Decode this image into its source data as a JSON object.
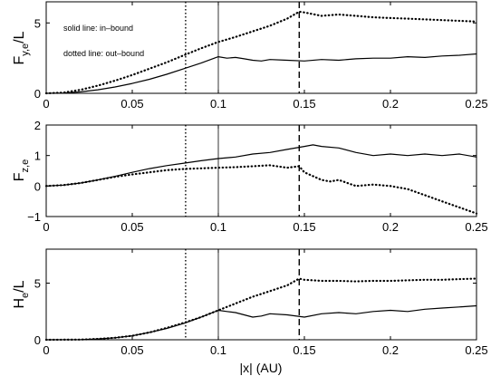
{
  "chart_data": [
    {
      "type": "line",
      "ylabel_main": "F",
      "ylabel_sub": "y,e",
      "ylabel_tail": "/L",
      "xlim": [
        0,
        0.25
      ],
      "ylim": [
        0,
        6.5
      ],
      "xticks": [
        0,
        0.05,
        0.1,
        0.15,
        0.2,
        0.25
      ],
      "xtick_labels": [
        "0",
        "0.05",
        "0.1",
        "0.15",
        "0.2",
        "0.25"
      ],
      "yticks": [
        0,
        5
      ],
      "ytick_labels": [
        "0",
        "5"
      ],
      "vlines": [
        {
          "x": 0.081,
          "style": "dotted"
        },
        {
          "x": 0.1,
          "style": "solid"
        },
        {
          "x": 0.147,
          "style": "dashed"
        }
      ],
      "annotations": [
        "solid line: in–bound",
        "dotted line: out–bound"
      ],
      "series": [
        {
          "style": "solid",
          "x": [
            0,
            0.01,
            0.02,
            0.03,
            0.04,
            0.05,
            0.06,
            0.07,
            0.08,
            0.09,
            0.1,
            0.105,
            0.11,
            0.115,
            0.12,
            0.125,
            0.13,
            0.14,
            0.15,
            0.16,
            0.17,
            0.18,
            0.19,
            0.2,
            0.21,
            0.22,
            0.23,
            0.24,
            0.25
          ],
          "y": [
            0,
            0.02,
            0.1,
            0.25,
            0.45,
            0.7,
            1.0,
            1.35,
            1.75,
            2.15,
            2.6,
            2.5,
            2.55,
            2.45,
            2.35,
            2.3,
            2.4,
            2.35,
            2.3,
            2.4,
            2.35,
            2.45,
            2.5,
            2.5,
            2.6,
            2.55,
            2.65,
            2.7,
            2.8
          ]
        },
        {
          "style": "dotted",
          "x": [
            0,
            0.01,
            0.02,
            0.03,
            0.04,
            0.05,
            0.06,
            0.07,
            0.08,
            0.09,
            0.1,
            0.11,
            0.12,
            0.13,
            0.14,
            0.147,
            0.15,
            0.16,
            0.17,
            0.18,
            0.19,
            0.2,
            0.21,
            0.22,
            0.23,
            0.24,
            0.25
          ],
          "y": [
            0,
            0.05,
            0.25,
            0.55,
            0.9,
            1.3,
            1.75,
            2.2,
            2.7,
            3.2,
            3.65,
            4.0,
            4.4,
            4.8,
            5.3,
            5.8,
            5.75,
            5.5,
            5.6,
            5.5,
            5.4,
            5.35,
            5.3,
            5.25,
            5.2,
            5.15,
            5.1
          ]
        }
      ]
    },
    {
      "type": "line",
      "ylabel_main": "F",
      "ylabel_sub": "z,e",
      "ylabel_tail": "",
      "xlim": [
        0,
        0.25
      ],
      "ylim": [
        -1,
        2
      ],
      "xticks": [
        0,
        0.05,
        0.1,
        0.15,
        0.2,
        0.25
      ],
      "xtick_labels": [
        "0",
        "0.05",
        "0.1",
        "0.15",
        "0.2",
        "0.25"
      ],
      "yticks": [
        -1,
        0,
        1,
        2
      ],
      "ytick_labels": [
        "−1",
        "0",
        "1",
        "2"
      ],
      "vlines": [
        {
          "x": 0.081,
          "style": "dotted"
        },
        {
          "x": 0.1,
          "style": "solid"
        },
        {
          "x": 0.147,
          "style": "dashed"
        }
      ],
      "annotations": [],
      "series": [
        {
          "style": "solid",
          "x": [
            0,
            0.01,
            0.02,
            0.03,
            0.04,
            0.05,
            0.06,
            0.07,
            0.08,
            0.09,
            0.1,
            0.11,
            0.12,
            0.13,
            0.14,
            0.15,
            0.155,
            0.16,
            0.17,
            0.18,
            0.19,
            0.2,
            0.21,
            0.22,
            0.23,
            0.24,
            0.25
          ],
          "y": [
            0,
            0.03,
            0.1,
            0.2,
            0.32,
            0.45,
            0.57,
            0.67,
            0.75,
            0.83,
            0.9,
            0.95,
            1.05,
            1.1,
            1.2,
            1.3,
            1.35,
            1.3,
            1.25,
            1.1,
            1.0,
            1.05,
            1.0,
            1.05,
            1.0,
            1.05,
            0.95
          ]
        },
        {
          "style": "dotted",
          "x": [
            0,
            0.01,
            0.02,
            0.03,
            0.04,
            0.05,
            0.06,
            0.07,
            0.08,
            0.09,
            0.1,
            0.11,
            0.12,
            0.13,
            0.14,
            0.147,
            0.15,
            0.16,
            0.165,
            0.17,
            0.175,
            0.18,
            0.19,
            0.2,
            0.21,
            0.22,
            0.23,
            0.24,
            0.25
          ],
          "y": [
            0,
            0.03,
            0.1,
            0.2,
            0.3,
            0.38,
            0.45,
            0.52,
            0.56,
            0.58,
            0.6,
            0.62,
            0.65,
            0.68,
            0.6,
            0.65,
            0.45,
            0.2,
            0.15,
            0.2,
            0.1,
            0.0,
            0.05,
            0.0,
            -0.1,
            -0.3,
            -0.5,
            -0.7,
            -0.9
          ]
        }
      ]
    },
    {
      "type": "line",
      "ylabel_main": "H",
      "ylabel_sub": "e",
      "ylabel_tail": "/L",
      "xlabel": "|x| (AU)",
      "xlim": [
        0,
        0.25
      ],
      "ylim": [
        0,
        8
      ],
      "xticks": [
        0,
        0.05,
        0.1,
        0.15,
        0.2,
        0.25
      ],
      "xtick_labels": [
        "0",
        "0.05",
        "0.1",
        "0.15",
        "0.2",
        "0.25"
      ],
      "yticks": [
        0,
        5
      ],
      "ytick_labels": [
        "0",
        "5"
      ],
      "vlines": [
        {
          "x": 0.081,
          "style": "dotted"
        },
        {
          "x": 0.1,
          "style": "solid"
        },
        {
          "x": 0.147,
          "style": "dashed"
        }
      ],
      "annotations": [],
      "series": [
        {
          "style": "solid",
          "x": [
            0,
            0.02,
            0.03,
            0.04,
            0.05,
            0.06,
            0.07,
            0.08,
            0.09,
            0.1,
            0.105,
            0.11,
            0.115,
            0.12,
            0.125,
            0.13,
            0.14,
            0.15,
            0.16,
            0.17,
            0.18,
            0.19,
            0.2,
            0.21,
            0.22,
            0.23,
            0.24,
            0.25
          ],
          "y": [
            0,
            0.02,
            0.07,
            0.18,
            0.35,
            0.65,
            1.0,
            1.45,
            2.0,
            2.6,
            2.5,
            2.4,
            2.2,
            2.0,
            2.1,
            2.3,
            2.2,
            2.0,
            2.3,
            2.4,
            2.3,
            2.5,
            2.6,
            2.5,
            2.7,
            2.8,
            2.9,
            3.0
          ]
        },
        {
          "style": "dotted",
          "x": [
            0,
            0.02,
            0.03,
            0.04,
            0.05,
            0.06,
            0.07,
            0.08,
            0.09,
            0.1,
            0.11,
            0.12,
            0.13,
            0.14,
            0.147,
            0.15,
            0.16,
            0.17,
            0.18,
            0.19,
            0.2,
            0.21,
            0.22,
            0.23,
            0.24,
            0.25
          ],
          "y": [
            0,
            0.02,
            0.07,
            0.18,
            0.35,
            0.65,
            1.05,
            1.5,
            2.0,
            2.6,
            3.2,
            3.8,
            4.3,
            4.8,
            5.4,
            5.3,
            5.2,
            5.2,
            5.15,
            5.2,
            5.2,
            5.25,
            5.3,
            5.3,
            5.35,
            5.4
          ]
        }
      ]
    }
  ]
}
